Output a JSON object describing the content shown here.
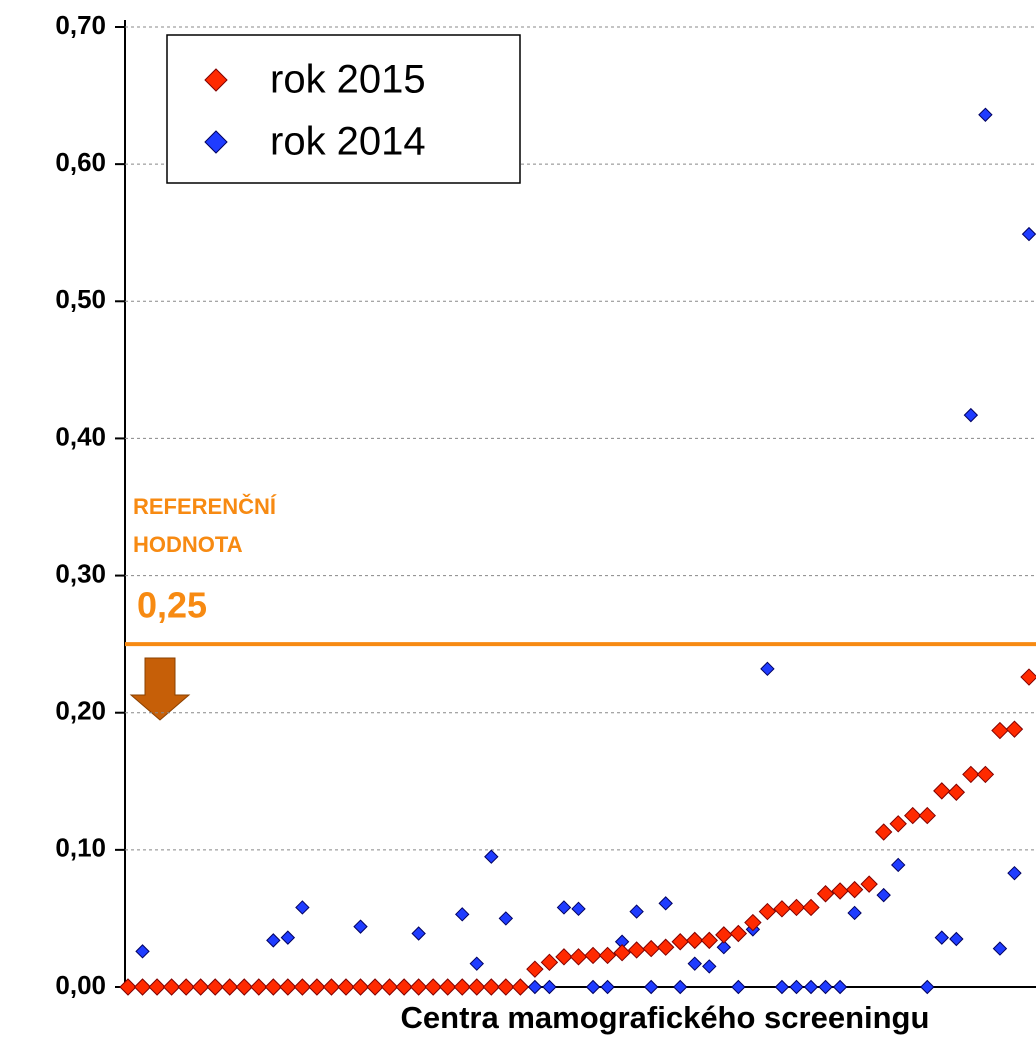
{
  "chart_data": {
    "type": "scatter",
    "x_label": "Centra mamografického screeningu",
    "categories": [
      null,
      null,
      null,
      null,
      null,
      null,
      null,
      null,
      null,
      null,
      null,
      null,
      null,
      null,
      null,
      null,
      null,
      null,
      null,
      null,
      null,
      null,
      null,
      null,
      null,
      null,
      null,
      null,
      null,
      null,
      null,
      null,
      null,
      null,
      null,
      null,
      null,
      null,
      null,
      null,
      null,
      null,
      null,
      null,
      null,
      null,
      null,
      null,
      null,
      null,
      null,
      null,
      null,
      null,
      null,
      null,
      null,
      null,
      null,
      null,
      null,
      null,
      null
    ],
    "series": [
      {
        "name": "rok 2015",
        "color": "#ff2a00",
        "values": [
          0,
          0,
          0,
          0,
          0,
          0,
          0,
          0,
          0,
          0,
          0,
          0,
          0,
          0,
          0,
          0,
          0,
          0,
          0,
          0,
          0,
          0,
          0,
          0,
          0,
          0,
          0,
          0,
          0.013,
          0.018,
          0.022,
          0.022,
          0.023,
          0.023,
          0.025,
          0.027,
          0.028,
          0.029,
          0.033,
          0.034,
          0.034,
          0.038,
          0.039,
          0.047,
          0.055,
          0.057,
          0.058,
          0.058,
          0.068,
          0.07,
          0.071,
          0.075,
          0.113,
          0.119,
          0.125,
          0.125,
          0.143,
          0.142,
          0.155,
          0.155,
          0.187,
          0.188,
          0.226
        ]
      },
      {
        "name": "rok 2014",
        "color": "#1f3cff",
        "values": [
          null,
          0.026,
          null,
          null,
          null,
          null,
          null,
          null,
          null,
          null,
          0.034,
          0.036,
          0.058,
          null,
          null,
          null,
          0.044,
          null,
          null,
          null,
          0.039,
          null,
          null,
          0.053,
          0.017,
          0.095,
          0.05,
          null,
          0,
          0,
          0.058,
          0.057,
          0,
          0,
          0.033,
          0.055,
          0,
          0.061,
          0,
          0.017,
          0.015,
          0.029,
          0,
          0.042,
          0.232,
          0,
          0,
          0,
          0,
          0,
          0.054,
          null,
          0.067,
          0.089,
          null,
          0,
          0.036,
          0.035,
          0.417,
          0.636,
          0.028,
          0.083,
          0.549
        ]
      }
    ],
    "ylim": [
      0,
      0.7
    ],
    "yticks": [
      {
        "value": 0,
        "label": "0,00"
      },
      {
        "value": 0.1,
        "label": "0,10"
      },
      {
        "value": 0.2,
        "label": "0,20"
      },
      {
        "value": 0.3,
        "label": "0,30"
      },
      {
        "value": 0.4,
        "label": "0,40"
      },
      {
        "value": 0.5,
        "label": "0,50"
      },
      {
        "value": 0.6,
        "label": "0,60"
      },
      {
        "value": 0.7,
        "label": "0,70"
      }
    ],
    "grid": true,
    "legend": "upper left",
    "reference_line": {
      "value": 0.25,
      "label": "0,25",
      "text": [
        "REFERENČNÍ",
        "HODNOTA"
      ],
      "color": "#f78a12"
    }
  }
}
